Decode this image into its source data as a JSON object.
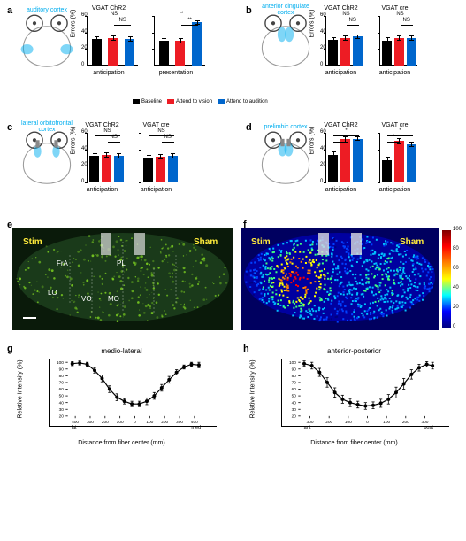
{
  "colors": {
    "baseline": "#000000",
    "vision": "#ed1c24",
    "audition": "#0066cc",
    "cyan": "#00aeef",
    "green": "#7ed321"
  },
  "legend": [
    {
      "color": "#000000",
      "label": "Baseline"
    },
    {
      "color": "#ed1c24",
      "label": "Attend to vision"
    },
    {
      "color": "#0066cc",
      "label": "Attend to audition"
    }
  ],
  "panels": {
    "a": {
      "label": "a",
      "brain": "auditory cortex",
      "charts": [
        {
          "title": "VGAT ChR2",
          "ylabel": "Errors (%)",
          "ylim": [
            0,
            60
          ],
          "groups": [
            {
              "xlabel": "anticipation",
              "bars": [
                {
                  "v": 32,
                  "e": 3
                },
                {
                  "v": 33,
                  "e": 3
                },
                {
                  "v": 32,
                  "e": 3
                }
              ],
              "sig": [
                {
                  "lvl": 1,
                  "txt": "NS",
                  "span": [
                    0,
                    2
                  ]
                },
                {
                  "lvl": 0,
                  "txt": "NS",
                  "span": [
                    1,
                    2
                  ]
                }
              ]
            },
            {
              "xlabel": "presentation",
              "bars": [
                {
                  "v": 30,
                  "e": 3
                },
                {
                  "v": 30,
                  "e": 3
                },
                {
                  "v": 52,
                  "e": 3
                }
              ],
              "sig": [
                {
                  "lvl": 1,
                  "txt": "**",
                  "span": [
                    0,
                    2
                  ]
                },
                {
                  "lvl": 0,
                  "txt": "**",
                  "span": [
                    1,
                    2
                  ]
                }
              ]
            }
          ]
        }
      ]
    },
    "b": {
      "label": "b",
      "brain": "anterior cingulate cortex",
      "charts": [
        {
          "title": "VGAT ChR2",
          "ylabel": "Errors (%)",
          "ylim": [
            0,
            60
          ],
          "groups": [
            {
              "xlabel": "anticipation",
              "bars": [
                {
                  "v": 31,
                  "e": 3
                },
                {
                  "v": 33,
                  "e": 3
                },
                {
                  "v": 35,
                  "e": 3
                }
              ],
              "sig": [
                {
                  "lvl": 1,
                  "txt": "NS",
                  "span": [
                    0,
                    2
                  ]
                },
                {
                  "lvl": 0,
                  "txt": "NS",
                  "span": [
                    1,
                    2
                  ]
                }
              ]
            }
          ]
        },
        {
          "title": "VGAT cre",
          "ylim": [
            0,
            60
          ],
          "groups": [
            {
              "xlabel": "anticipation",
              "bars": [
                {
                  "v": 30,
                  "e": 4
                },
                {
                  "v": 33,
                  "e": 3
                },
                {
                  "v": 33,
                  "e": 3
                }
              ],
              "sig": [
                {
                  "lvl": 1,
                  "txt": "NS",
                  "span": [
                    0,
                    2
                  ]
                },
                {
                  "lvl": 0,
                  "txt": "NS",
                  "span": [
                    1,
                    2
                  ]
                }
              ]
            }
          ]
        }
      ]
    },
    "c": {
      "label": "c",
      "brain": "lateral orbitofrontal cortex",
      "charts": [
        {
          "title": "VGAT ChR2",
          "ylabel": "Errors (%)",
          "ylim": [
            0,
            60
          ],
          "groups": [
            {
              "xlabel": "anticipation",
              "bars": [
                {
                  "v": 32,
                  "e": 3
                },
                {
                  "v": 33,
                  "e": 3
                },
                {
                  "v": 32,
                  "e": 3
                }
              ],
              "sig": [
                {
                  "lvl": 1,
                  "txt": "NS",
                  "span": [
                    0,
                    2
                  ]
                },
                {
                  "lvl": 0,
                  "txt": "NS",
                  "span": [
                    1,
                    2
                  ]
                }
              ]
            }
          ]
        },
        {
          "title": "VGAT cre",
          "ylim": [
            0,
            60
          ],
          "groups": [
            {
              "xlabel": "anticipation",
              "bars": [
                {
                  "v": 30,
                  "e": 3
                },
                {
                  "v": 31,
                  "e": 3
                },
                {
                  "v": 32,
                  "e": 3
                }
              ],
              "sig": [
                {
                  "lvl": 1,
                  "txt": "NS",
                  "span": [
                    0,
                    2
                  ]
                },
                {
                  "lvl": 0,
                  "txt": "NS",
                  "span": [
                    1,
                    2
                  ]
                }
              ]
            }
          ]
        }
      ]
    },
    "d": {
      "label": "d",
      "brain": "prelimbic cortex",
      "charts": [
        {
          "title": "VGAT ChR2",
          "ylabel": "Errors (%)",
          "ylim": [
            0,
            60
          ],
          "groups": [
            {
              "xlabel": "anticipation",
              "bars": [
                {
                  "v": 33,
                  "e": 4
                },
                {
                  "v": 52,
                  "e": 4
                },
                {
                  "v": 53,
                  "e": 3
                }
              ],
              "sig": [
                {
                  "lvl": 1,
                  "txt": "*",
                  "span": [
                    0,
                    2
                  ]
                },
                {
                  "lvl": 0,
                  "txt": "*",
                  "span": [
                    0,
                    1
                  ]
                }
              ]
            }
          ]
        },
        {
          "title": "VGAT cre",
          "ylim": [
            0,
            60
          ],
          "groups": [
            {
              "xlabel": "anticipation",
              "bars": [
                {
                  "v": 27,
                  "e": 4
                },
                {
                  "v": 50,
                  "e": 4
                },
                {
                  "v": 46,
                  "e": 3
                }
              ],
              "sig": [
                {
                  "lvl": 1,
                  "txt": "*",
                  "span": [
                    0,
                    2
                  ]
                },
                {
                  "lvl": 0,
                  "txt": "*",
                  "span": [
                    0,
                    1
                  ]
                }
              ]
            }
          ]
        }
      ]
    }
  },
  "e": {
    "label": "e",
    "left": "Stim",
    "right": "Sham",
    "regions": [
      "FrA",
      "PL",
      "LO",
      "VO",
      "MO"
    ]
  },
  "f": {
    "label": "f",
    "left": "Stim",
    "right": "Sham",
    "colorbar": {
      "min": 0,
      "max": 100,
      "ticks": [
        0,
        20,
        40,
        60,
        80,
        100
      ]
    }
  },
  "g": {
    "label": "g",
    "title": "medio-lateral",
    "ylabel": "Relative Intensity (%)",
    "xlabel": "Distance from fiber center (mm)",
    "ylim": [
      20,
      100
    ],
    "yticks": [
      20,
      30,
      40,
      50,
      60,
      70,
      80,
      90,
      100
    ],
    "xlim": [
      -450,
      450
    ],
    "xticks": [
      -400,
      -300,
      -200,
      -100,
      0,
      100,
      200,
      300,
      400
    ],
    "left_lbl": "lat",
    "right_lbl": "med",
    "points": [
      {
        "x": -420,
        "y": 98,
        "e": 3
      },
      {
        "x": -370,
        "y": 99,
        "e": 3
      },
      {
        "x": -320,
        "y": 97,
        "e": 3
      },
      {
        "x": -270,
        "y": 88,
        "e": 4
      },
      {
        "x": -220,
        "y": 76,
        "e": 5
      },
      {
        "x": -170,
        "y": 60,
        "e": 5
      },
      {
        "x": -120,
        "y": 48,
        "e": 5
      },
      {
        "x": -70,
        "y": 42,
        "e": 4
      },
      {
        "x": -20,
        "y": 38,
        "e": 4
      },
      {
        "x": 30,
        "y": 38,
        "e": 4
      },
      {
        "x": 80,
        "y": 42,
        "e": 5
      },
      {
        "x": 130,
        "y": 50,
        "e": 5
      },
      {
        "x": 180,
        "y": 62,
        "e": 5
      },
      {
        "x": 230,
        "y": 74,
        "e": 5
      },
      {
        "x": 280,
        "y": 85,
        "e": 4
      },
      {
        "x": 330,
        "y": 93,
        "e": 3
      },
      {
        "x": 380,
        "y": 97,
        "e": 3
      },
      {
        "x": 430,
        "y": 96,
        "e": 4
      }
    ]
  },
  "h": {
    "label": "h",
    "title": "anterior-posterior",
    "ylabel": "Relative Intensity (%)",
    "xlabel": "Distance from fiber center (mm)",
    "ylim": [
      20,
      100
    ],
    "yticks": [
      20,
      30,
      40,
      50,
      60,
      70,
      80,
      90,
      100
    ],
    "xlim": [
      -350,
      350
    ],
    "xticks": [
      -300,
      -200,
      -100,
      0,
      100,
      200,
      300
    ],
    "left_lbl": "ant",
    "right_lbl": "post",
    "points": [
      {
        "x": -330,
        "y": 98,
        "e": 4
      },
      {
        "x": -290,
        "y": 95,
        "e": 5
      },
      {
        "x": -250,
        "y": 85,
        "e": 6
      },
      {
        "x": -210,
        "y": 70,
        "e": 7
      },
      {
        "x": -170,
        "y": 55,
        "e": 7
      },
      {
        "x": -130,
        "y": 45,
        "e": 6
      },
      {
        "x": -90,
        "y": 40,
        "e": 6
      },
      {
        "x": -50,
        "y": 37,
        "e": 5
      },
      {
        "x": -10,
        "y": 35,
        "e": 5
      },
      {
        "x": 30,
        "y": 36,
        "e": 5
      },
      {
        "x": 70,
        "y": 39,
        "e": 6
      },
      {
        "x": 110,
        "y": 45,
        "e": 7
      },
      {
        "x": 150,
        "y": 55,
        "e": 8
      },
      {
        "x": 190,
        "y": 68,
        "e": 8
      },
      {
        "x": 230,
        "y": 82,
        "e": 7
      },
      {
        "x": 270,
        "y": 92,
        "e": 5
      },
      {
        "x": 310,
        "y": 97,
        "e": 4
      },
      {
        "x": 340,
        "y": 95,
        "e": 5
      }
    ]
  }
}
